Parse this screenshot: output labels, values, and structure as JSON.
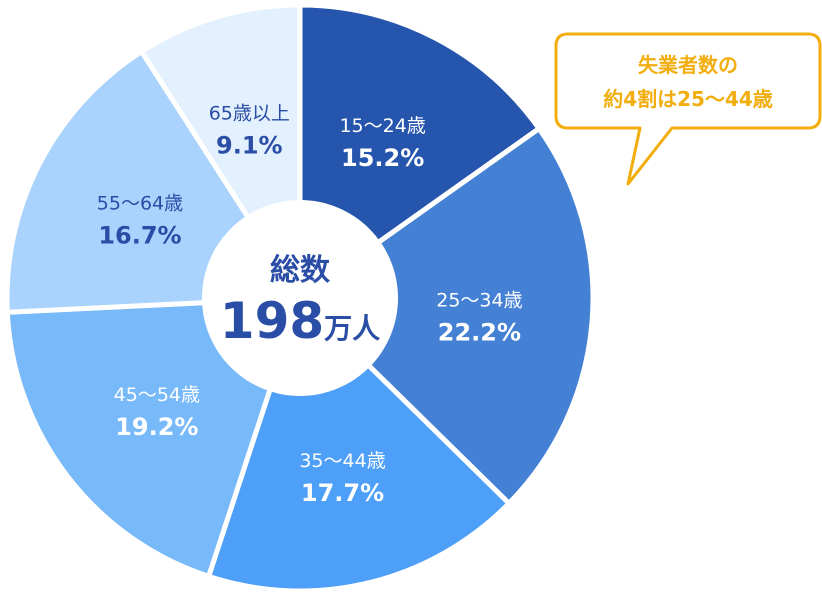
{
  "chart_data": {
    "type": "pie",
    "variant": "donut",
    "categories": [
      "15〜24歳",
      "25〜34歳",
      "35〜44歳",
      "45〜54歳",
      "55〜64歳",
      "65歳以上"
    ],
    "values": [
      15.2,
      22.2,
      17.7,
      19.2,
      16.7,
      9.1
    ],
    "value_labels": [
      "15.2%",
      "22.2%",
      "17.7%",
      "19.2%",
      "16.7%",
      "9.1%"
    ],
    "colors": [
      "#2655ad",
      "#4480d4",
      "#4d9ff8",
      "#78b9fa",
      "#a9d3fc",
      "#e3f0fd"
    ],
    "label_colors": [
      "#ffffff",
      "#ffffff",
      "#ffffff",
      "#ffffff",
      "#2a4da6",
      "#2a4da6"
    ],
    "start_angle_deg": 0,
    "direction": "clockwise",
    "center": {
      "title": "総数",
      "number": "198",
      "unit": "万人"
    },
    "annotation": {
      "line1": "失業者数の",
      "line2": "約4割は25〜44歳",
      "color": "#f2ad0e"
    },
    "legend": "none"
  }
}
